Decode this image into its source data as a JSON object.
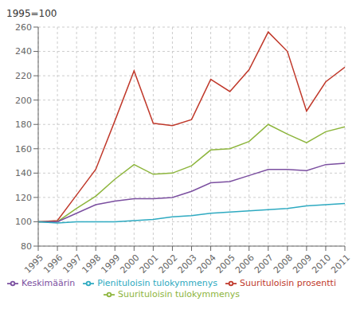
{
  "chart_data": {
    "type": "line",
    "ylabel": "1995=100",
    "x": [
      1995,
      1996,
      1997,
      1998,
      1999,
      2000,
      2001,
      2002,
      2003,
      2004,
      2005,
      2006,
      2007,
      2008,
      2009,
      2010,
      2011
    ],
    "series": [
      {
        "name": "Suurituloisin prosentti",
        "color": "#c0392b",
        "values": [
          100,
          101,
          122,
          143,
          183,
          224,
          181,
          179,
          184,
          217,
          207,
          225,
          256,
          240,
          191,
          215,
          227
        ]
      },
      {
        "name": "Suurituloisin tulokymmenys",
        "color": "#8db53c",
        "values": [
          100,
          100,
          111,
          121,
          135,
          147,
          139,
          140,
          146,
          159,
          160,
          166,
          180,
          172,
          165,
          174,
          178
        ]
      },
      {
        "name": "Keskimäärin",
        "color": "#7b4fa0",
        "values": [
          100,
          100,
          107,
          114,
          117,
          119,
          119,
          120,
          125,
          132,
          133,
          138,
          143,
          143,
          142,
          147,
          148
        ]
      },
      {
        "name": "Pienituloisin tulokymmenys",
        "color": "#2eaac1",
        "values": [
          100,
          99,
          100,
          100,
          100,
          101,
          102,
          104,
          105,
          107,
          108,
          109,
          110,
          111,
          113,
          114,
          115
        ]
      }
    ],
    "xlim": [
      1995,
      2011
    ],
    "xticks": [
      1995,
      1996,
      1997,
      1998,
      1999,
      2000,
      2001,
      2002,
      2003,
      2004,
      2005,
      2006,
      2007,
      2008,
      2009,
      2010,
      2011
    ],
    "ylim": [
      80,
      260
    ],
    "yticks": [
      80,
      100,
      120,
      140,
      160,
      180,
      200,
      220,
      240,
      260
    ],
    "grid": true,
    "legend": "bottom"
  }
}
